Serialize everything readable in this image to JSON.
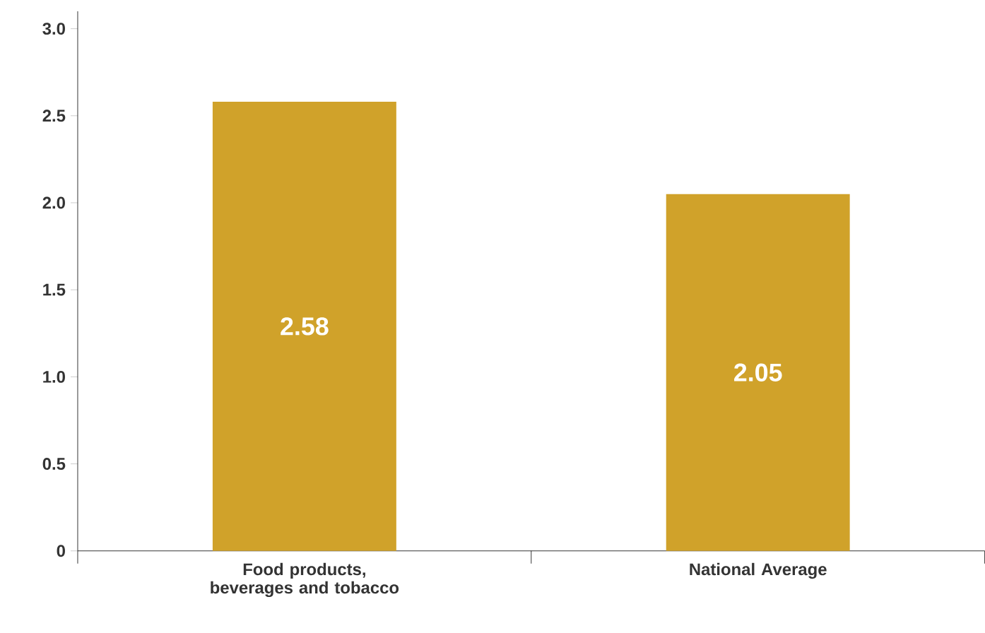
{
  "chart_data": {
    "type": "bar",
    "categories": [
      "Food products, beverages and tobacco",
      "National Average"
    ],
    "values": [
      2.58,
      2.05
    ],
    "value_labels": [
      "2.58",
      "2.05"
    ],
    "color": "#d0a22a",
    "ylim": [
      0,
      3.1
    ],
    "yticks": [
      0,
      0.5,
      {
        "value": 1,
        "label": "1.0"
      },
      1.5,
      {
        "value": 2,
        "label": "2.0"
      },
      2.5,
      {
        "value": 3,
        "label": "3.0"
      }
    ],
    "grid": false
  }
}
